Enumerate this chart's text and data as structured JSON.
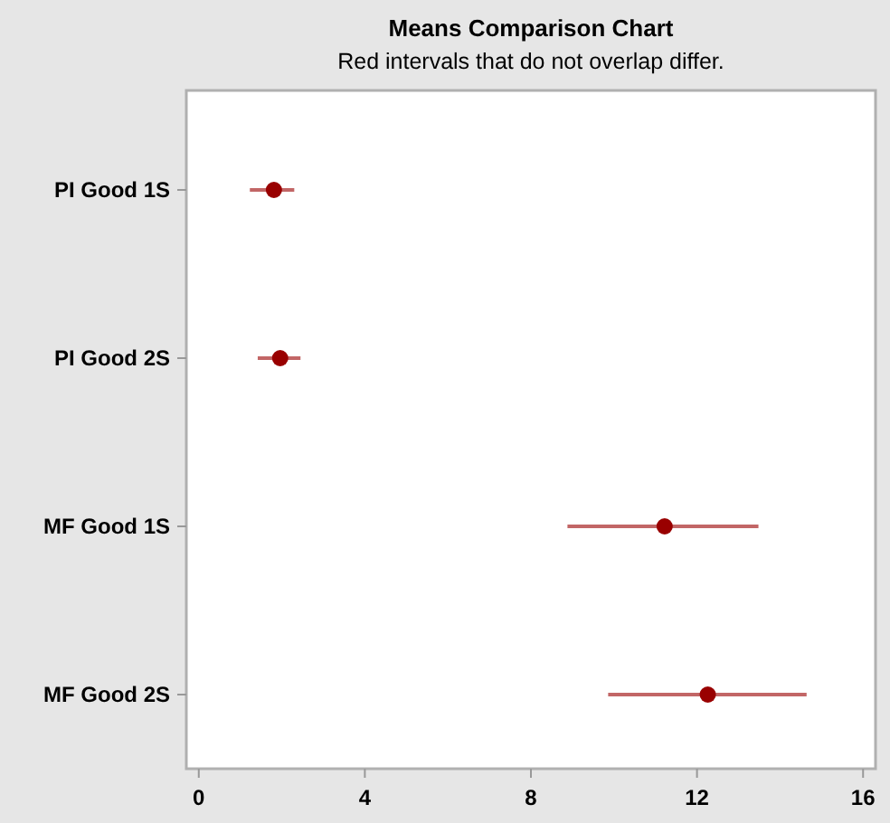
{
  "chart_data": {
    "type": "scatter",
    "title": "Means Comparison Chart",
    "subtitle": "Red intervals that do not overlap differ.",
    "orientation": "horizontal",
    "categories": [
      "PI Good 1S",
      "PI Good 2S",
      "MF Good 1S",
      "MF Good 2S"
    ],
    "values": [
      1.81,
      1.96,
      11.22,
      12.26
    ],
    "errors": [
      [
        1.23,
        2.3
      ],
      [
        1.42,
        2.45
      ],
      [
        8.88,
        13.48
      ],
      [
        9.86,
        14.64
      ]
    ],
    "color": "#990000",
    "marker": "circle",
    "xlim": [
      -0.3,
      16.3
    ],
    "xticks": [
      0,
      4,
      8,
      12,
      16
    ],
    "grid": false
  }
}
